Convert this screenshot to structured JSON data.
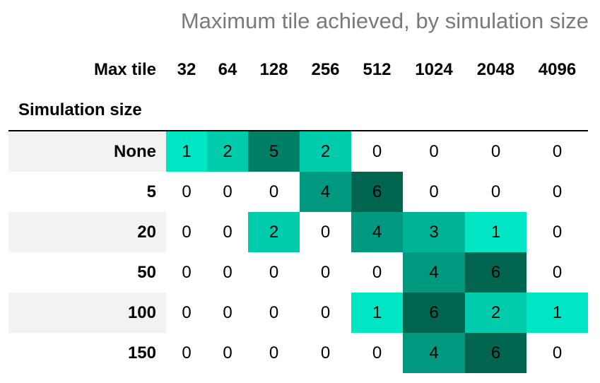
{
  "caption": "Maximum tile achieved, by simulation size",
  "colors": {
    "background": "#ffffff",
    "caption_text": "#7a7a7a",
    "row_label_stripe": "#f2f2f2",
    "heat_low": "#00e5c4",
    "heat_high": "#00654f"
  },
  "chart_data": {
    "type": "heatmap",
    "title": "Maximum tile achieved, by simulation size",
    "column_axis_name": "Max tile",
    "row_axis_name": "Simulation size",
    "columns": [
      "32",
      "64",
      "128",
      "256",
      "512",
      "1024",
      "2048",
      "4096"
    ],
    "rows": [
      "None",
      "5",
      "20",
      "50",
      "100",
      "150"
    ],
    "values": [
      [
        1,
        2,
        5,
        2,
        0,
        0,
        0,
        0
      ],
      [
        0,
        0,
        0,
        4,
        6,
        0,
        0,
        0
      ],
      [
        0,
        0,
        2,
        0,
        4,
        3,
        1,
        0
      ],
      [
        0,
        0,
        0,
        0,
        0,
        4,
        6,
        0
      ],
      [
        0,
        0,
        0,
        0,
        1,
        6,
        2,
        1
      ],
      [
        0,
        0,
        0,
        0,
        0,
        4,
        6,
        0
      ]
    ],
    "color_scale": "teal, light (low) to dark (high); zeros shown uncolored",
    "grid": false
  }
}
